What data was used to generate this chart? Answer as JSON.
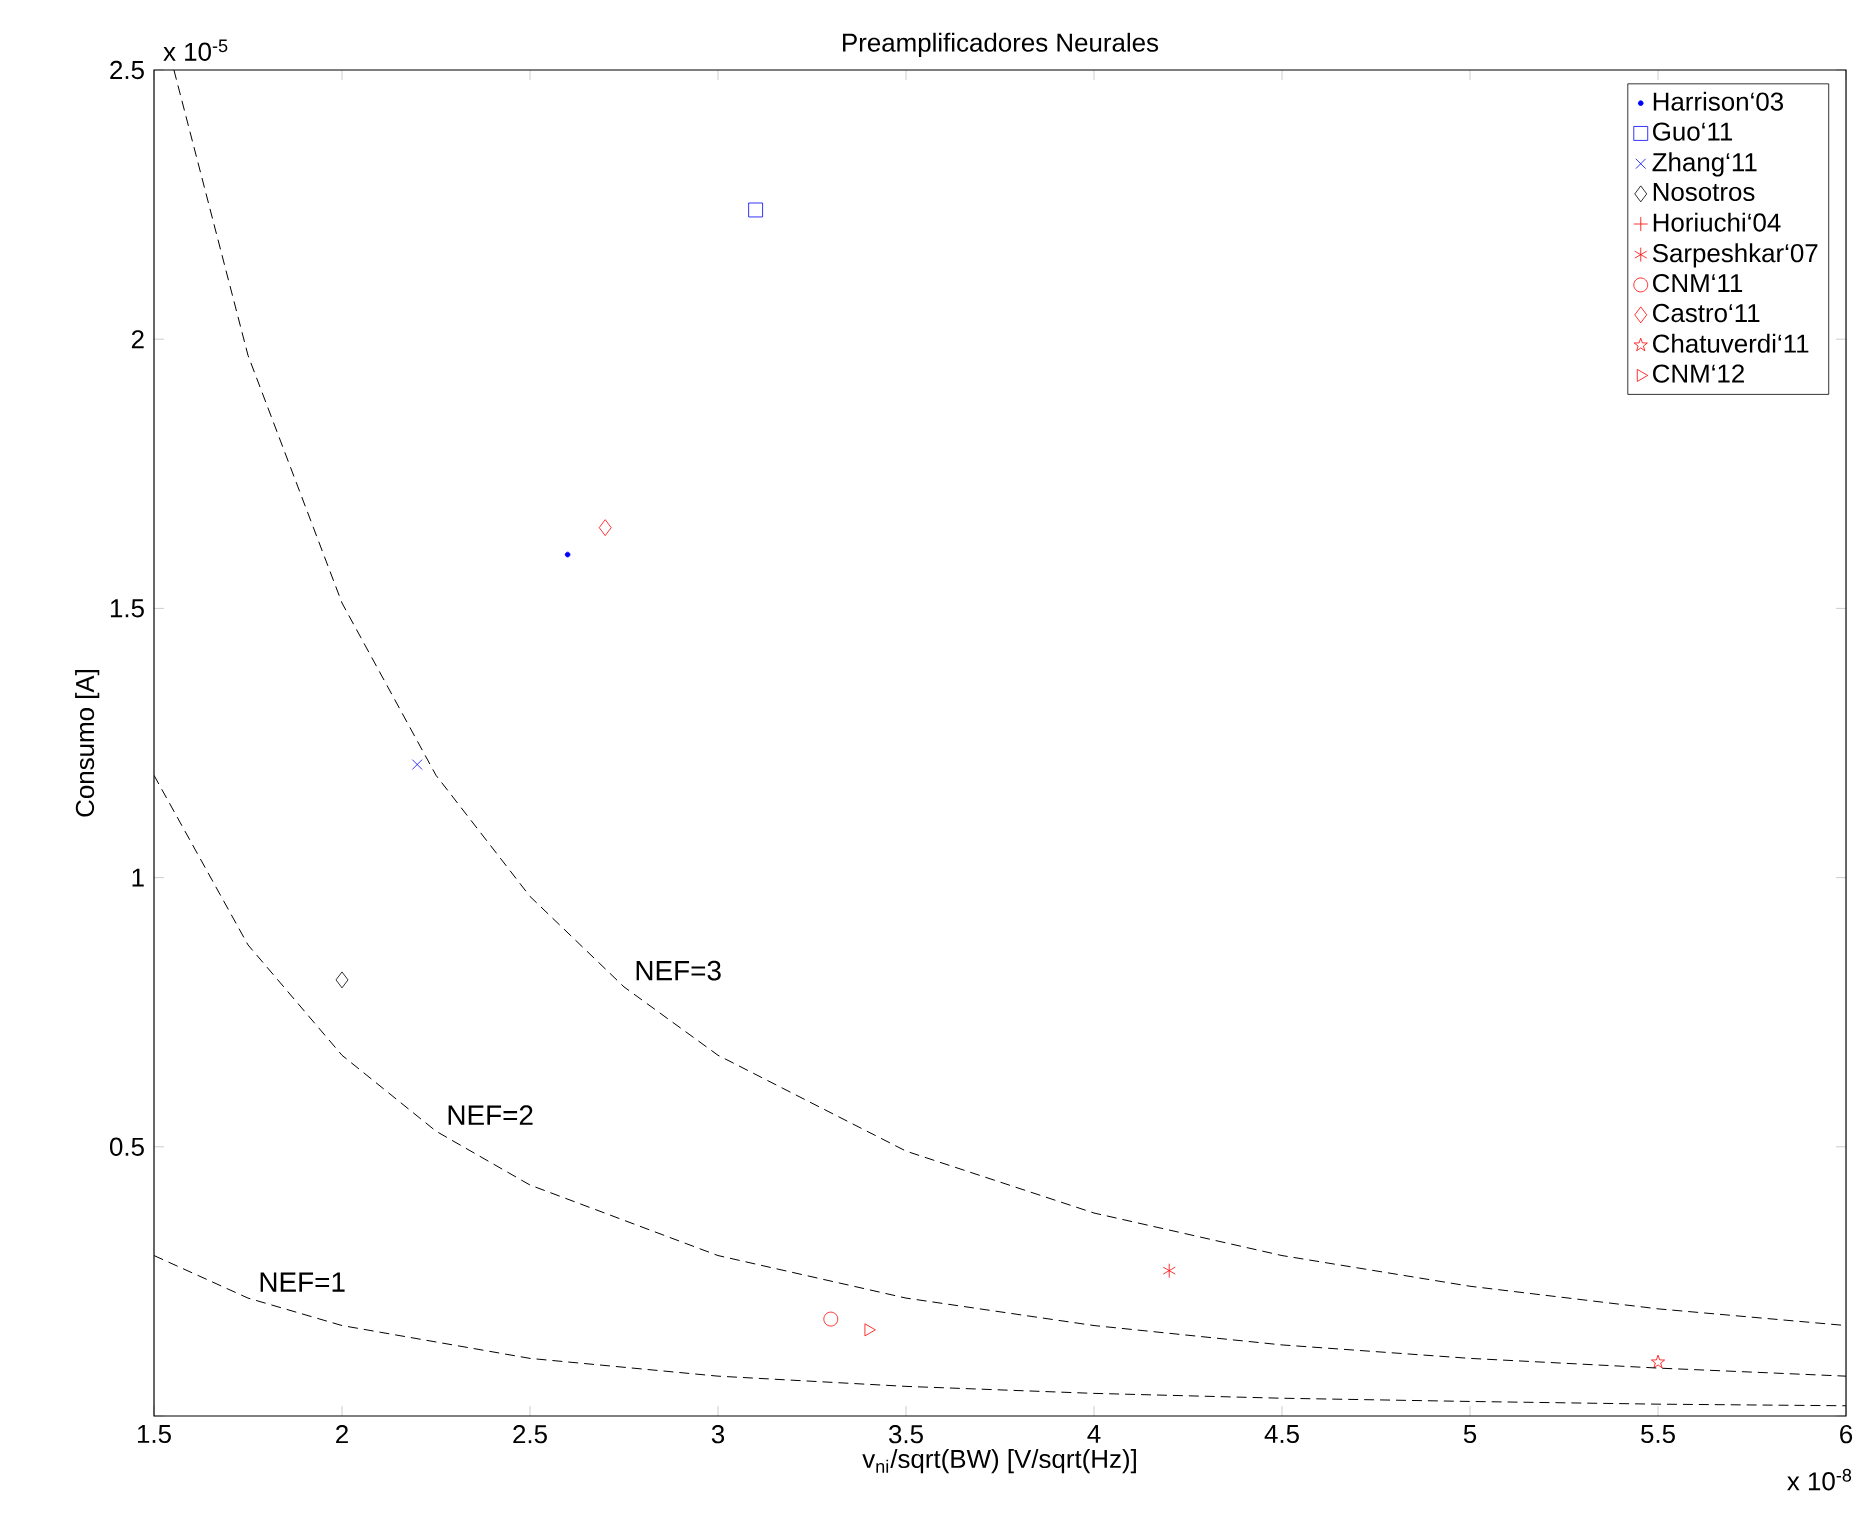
{
  "chart_data": {
    "type": "scatter",
    "title": "Preamplificadores Neurales",
    "xlabel": "v$_{ni}$/sqrt(BW) [V/sqrt(Hz)]",
    "ylabel": "Consumo [A]",
    "xlim": [
      1.5,
      6
    ],
    "ylim": [
      0,
      2.5
    ],
    "xticks": [
      1.5,
      2,
      2.5,
      3,
      3.5,
      4,
      4.5,
      5,
      5.5,
      6
    ],
    "yticks": [
      {
        "value": 0,
        "label": null
      },
      0.5,
      1,
      1.5,
      2,
      2.5
    ],
    "legend": "top right",
    "grid": false,
    "series": [
      {
        "name": "Harrison‘03",
        "color": "#0000ff",
        "marker": "point",
        "x": [
          2.6
        ],
        "values": [
          1.6
        ]
      },
      {
        "name": "Guo‘11",
        "color": "#0000ff",
        "marker": "square",
        "x": [
          3.1
        ],
        "values": [
          2.24
        ]
      },
      {
        "name": "Zhang‘11",
        "color": "#0000ff",
        "marker": "x",
        "x": [
          2.2
        ],
        "values": [
          1.21
        ]
      },
      {
        "name": "Nosotros",
        "color": "#000000",
        "marker": "diamond",
        "x": [
          2.0
        ],
        "values": [
          0.81
        ]
      },
      {
        "name": "Horiuchi‘04",
        "color": "#ff0000",
        "marker": "plus"
      },
      {
        "name": "Sarpeshkar‘07",
        "color": "#ff0000",
        "marker": "cross",
        "x": [
          4.2
        ],
        "values": [
          0.27
        ]
      },
      {
        "name": "CNM‘11",
        "color": "#ff0000",
        "marker": "circle",
        "x": [
          3.3
        ],
        "values": [
          0.18
        ]
      },
      {
        "name": "Castro‘11",
        "color": "#ff0000",
        "marker": "diamond",
        "x": [
          2.7
        ],
        "values": [
          1.65
        ]
      },
      {
        "name": "Chatuverdi‘11",
        "color": "#ff0000",
        "marker": "star",
        "x": [
          5.5
        ],
        "values": [
          0.1
        ]
      },
      {
        "name": "CNM‘12",
        "color": "#ff0000",
        "marker": "triangle-right",
        "x": [
          3.4
        ],
        "values": [
          0.16
        ]
      },
      {
        "type": "line",
        "name": "NEF=1",
        "line_style": "dashed",
        "color": "#000000",
        "marker": "none",
        "x": [
          1.5,
          1.75,
          2,
          2.5,
          3,
          3.5,
          4,
          4.5,
          5,
          5.5,
          6
        ],
        "values": [
          0.298,
          0.219,
          0.168,
          0.107,
          0.074,
          0.055,
          0.042,
          0.033,
          0.027,
          0.022,
          0.019
        ]
      },
      {
        "type": "line",
        "name": "NEF=2",
        "line_style": "dashed",
        "color": "#000000",
        "marker": "none",
        "x": [
          1.5,
          1.75,
          2,
          2.25,
          2.5,
          3,
          3.5,
          4,
          4.5,
          5,
          5.5,
          6
        ],
        "values": [
          1.19,
          0.875,
          0.67,
          0.529,
          0.429,
          0.298,
          0.219,
          0.168,
          0.132,
          0.107,
          0.089,
          0.074
        ]
      },
      {
        "type": "line",
        "name": "NEF=3",
        "line_style": "dashed",
        "color": "#000000",
        "marker": "none",
        "x": [
          1.553,
          1.75,
          2,
          2.25,
          2.5,
          2.75,
          3,
          3.5,
          4,
          4.5,
          5,
          5.5,
          6
        ],
        "values": [
          2.5,
          1.97,
          1.51,
          1.19,
          0.965,
          0.797,
          0.67,
          0.492,
          0.377,
          0.298,
          0.241,
          0.199,
          0.168
        ]
      }
    ],
    "annotations": [
      "x 10$^{-5}$",
      "x 10$^{-8}$"
    ]
  }
}
